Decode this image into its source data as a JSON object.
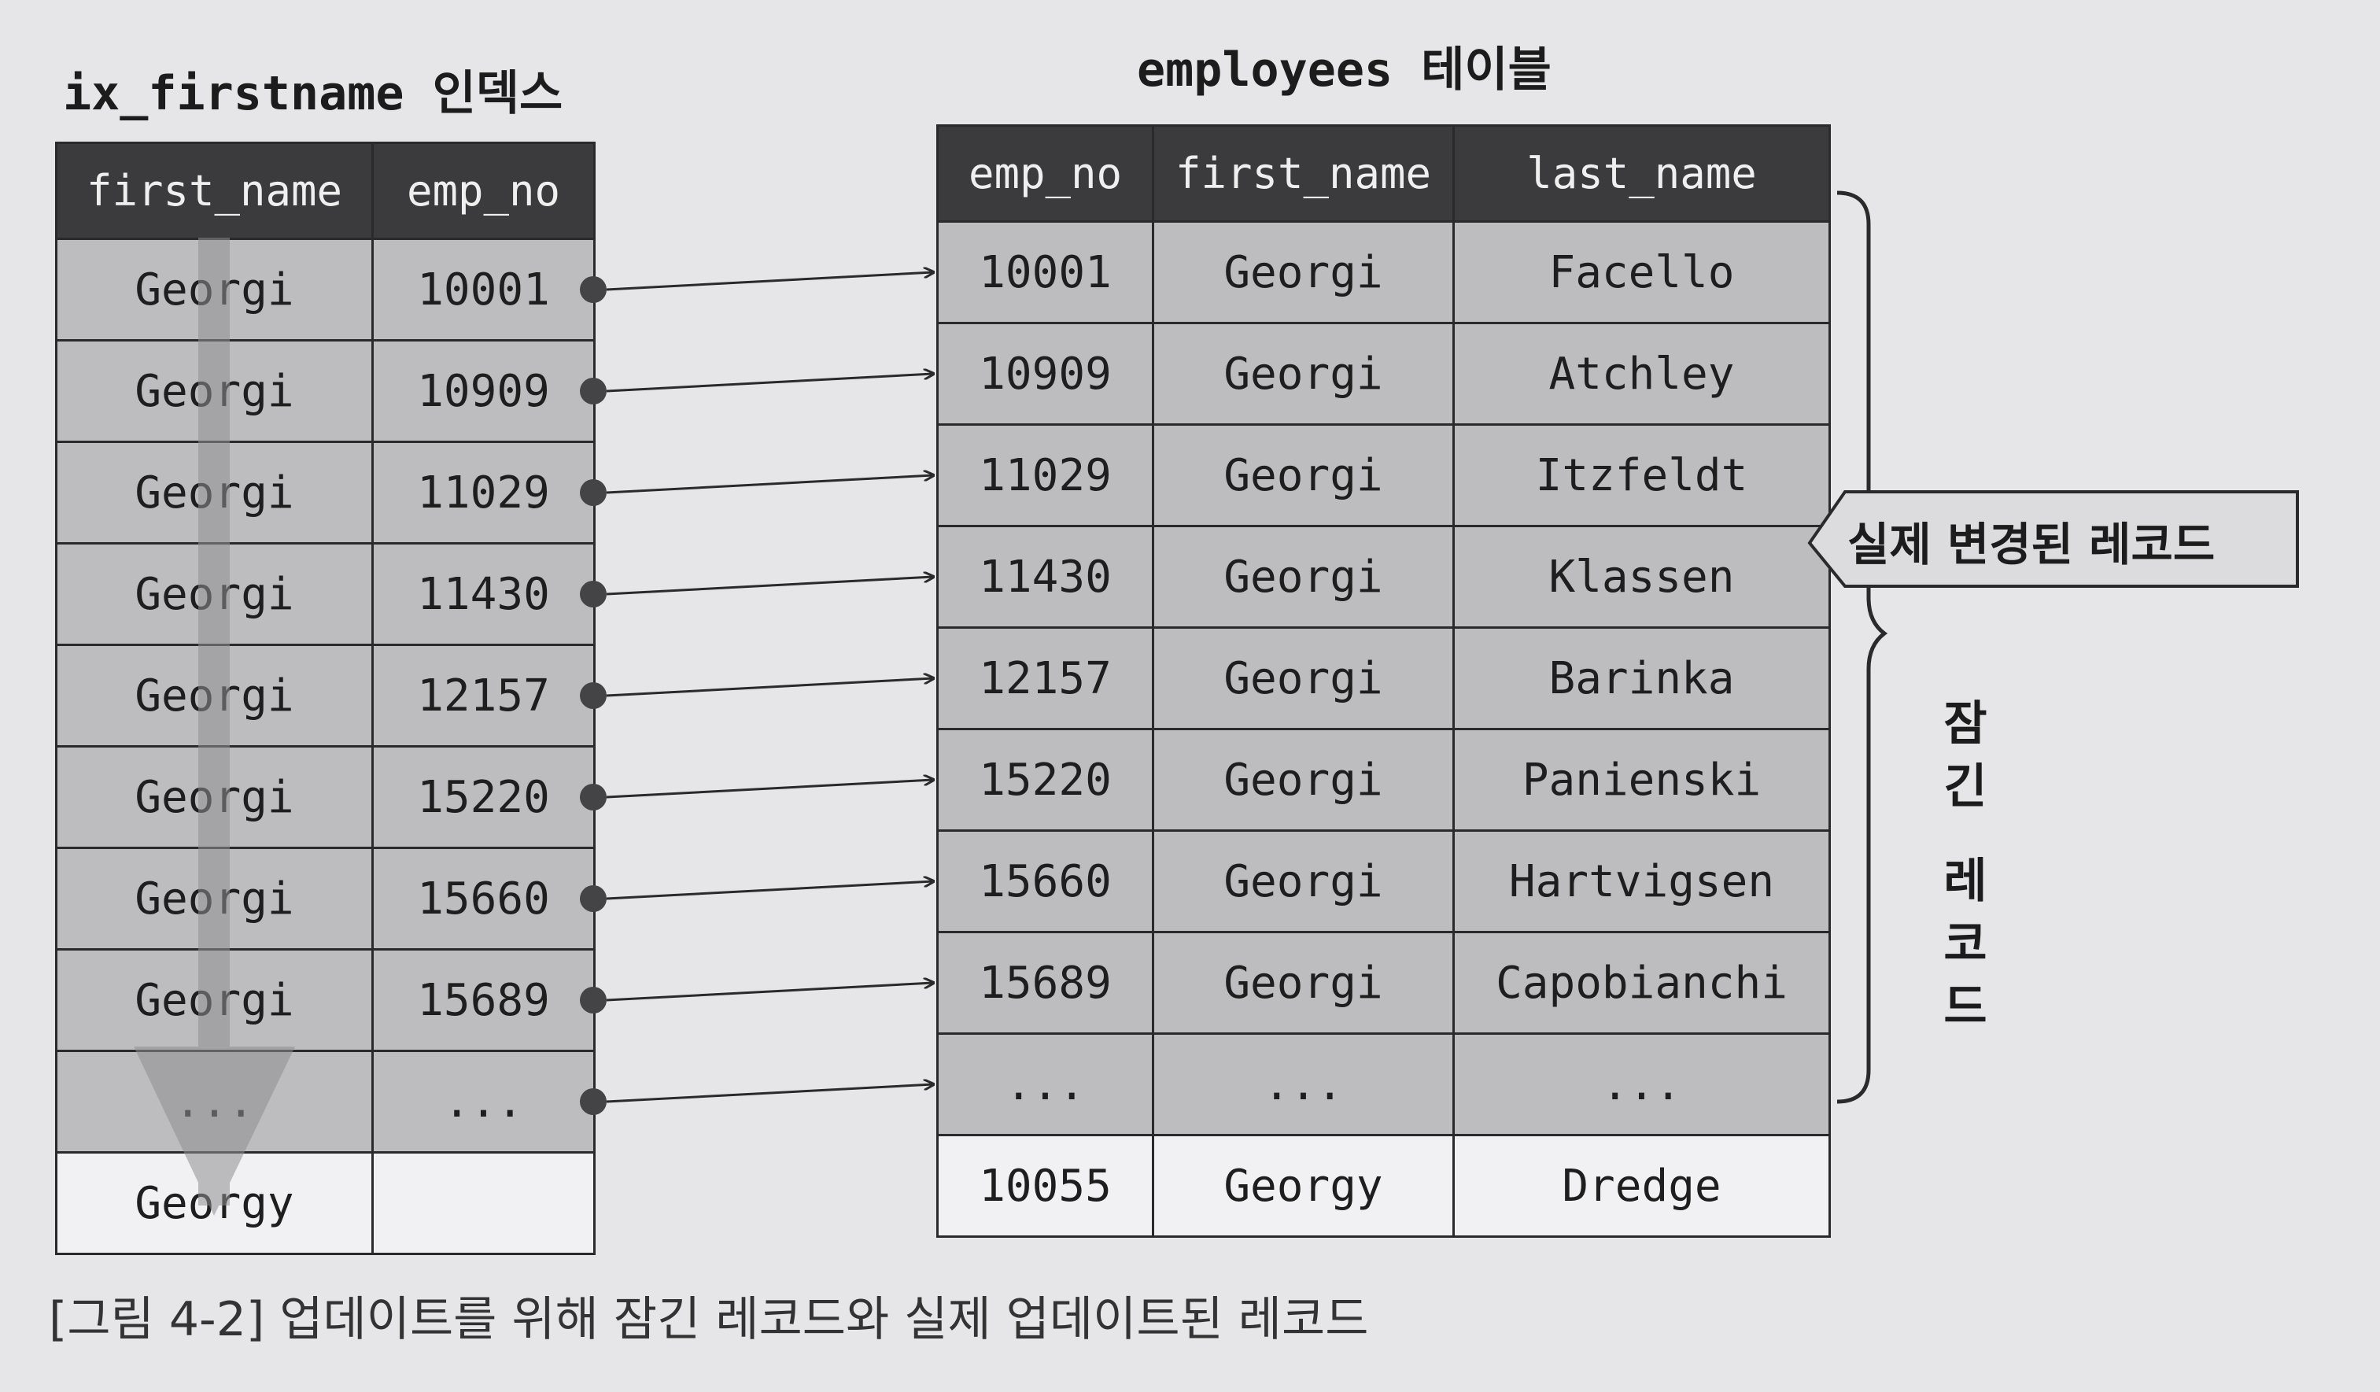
{
  "index_table": {
    "title": "ix_firstname 인덱스",
    "columns": [
      "first_name",
      "emp_no"
    ],
    "locked_rows": [
      [
        "Georgi",
        "10001"
      ],
      [
        "Georgi",
        "10909"
      ],
      [
        "Georgi",
        "11029"
      ],
      [
        "Georgi",
        "11430"
      ],
      [
        "Georgi",
        "12157"
      ],
      [
        "Georgi",
        "15220"
      ],
      [
        "Georgi",
        "15660"
      ],
      [
        "Georgi",
        "15689"
      ],
      [
        "...",
        "..."
      ]
    ],
    "plain_rows": [
      [
        "Georgy",
        ""
      ]
    ]
  },
  "employees_table": {
    "title": "employees 테이블",
    "columns": [
      "emp_no",
      "first_name",
      "last_name"
    ],
    "locked_rows": [
      [
        "10001",
        "Georgi",
        "Facello"
      ],
      [
        "10909",
        "Georgi",
        "Atchley"
      ],
      [
        "11029",
        "Georgi",
        "Itzfeldt"
      ],
      [
        "11430",
        "Georgi",
        "Klassen"
      ],
      [
        "12157",
        "Georgi",
        "Barinka"
      ],
      [
        "15220",
        "Georgi",
        "Panienski"
      ],
      [
        "15660",
        "Georgi",
        "Hartvigsen"
      ],
      [
        "15689",
        "Georgi",
        "Capobianchi"
      ],
      [
        "...",
        "...",
        "..."
      ]
    ],
    "plain_rows": [
      [
        "10055",
        "Georgy",
        "Dredge"
      ]
    ],
    "updated_row_index": 3
  },
  "callout": {
    "text": "실제 변경된 레코드"
  },
  "locked_label": {
    "text": "잠긴 레코드"
  },
  "caption": "[그림 4-2] 업데이트를 위해 잠긴 레코드와 실제 업데이트된 레코드",
  "colors": {
    "header_bg": "#3b3b3d",
    "locked_row_bg": "#bdbdc0",
    "plain_row_bg": "#f1f1f3",
    "line": "#2a2a2a",
    "scan_arrow": "#8f8f92"
  }
}
